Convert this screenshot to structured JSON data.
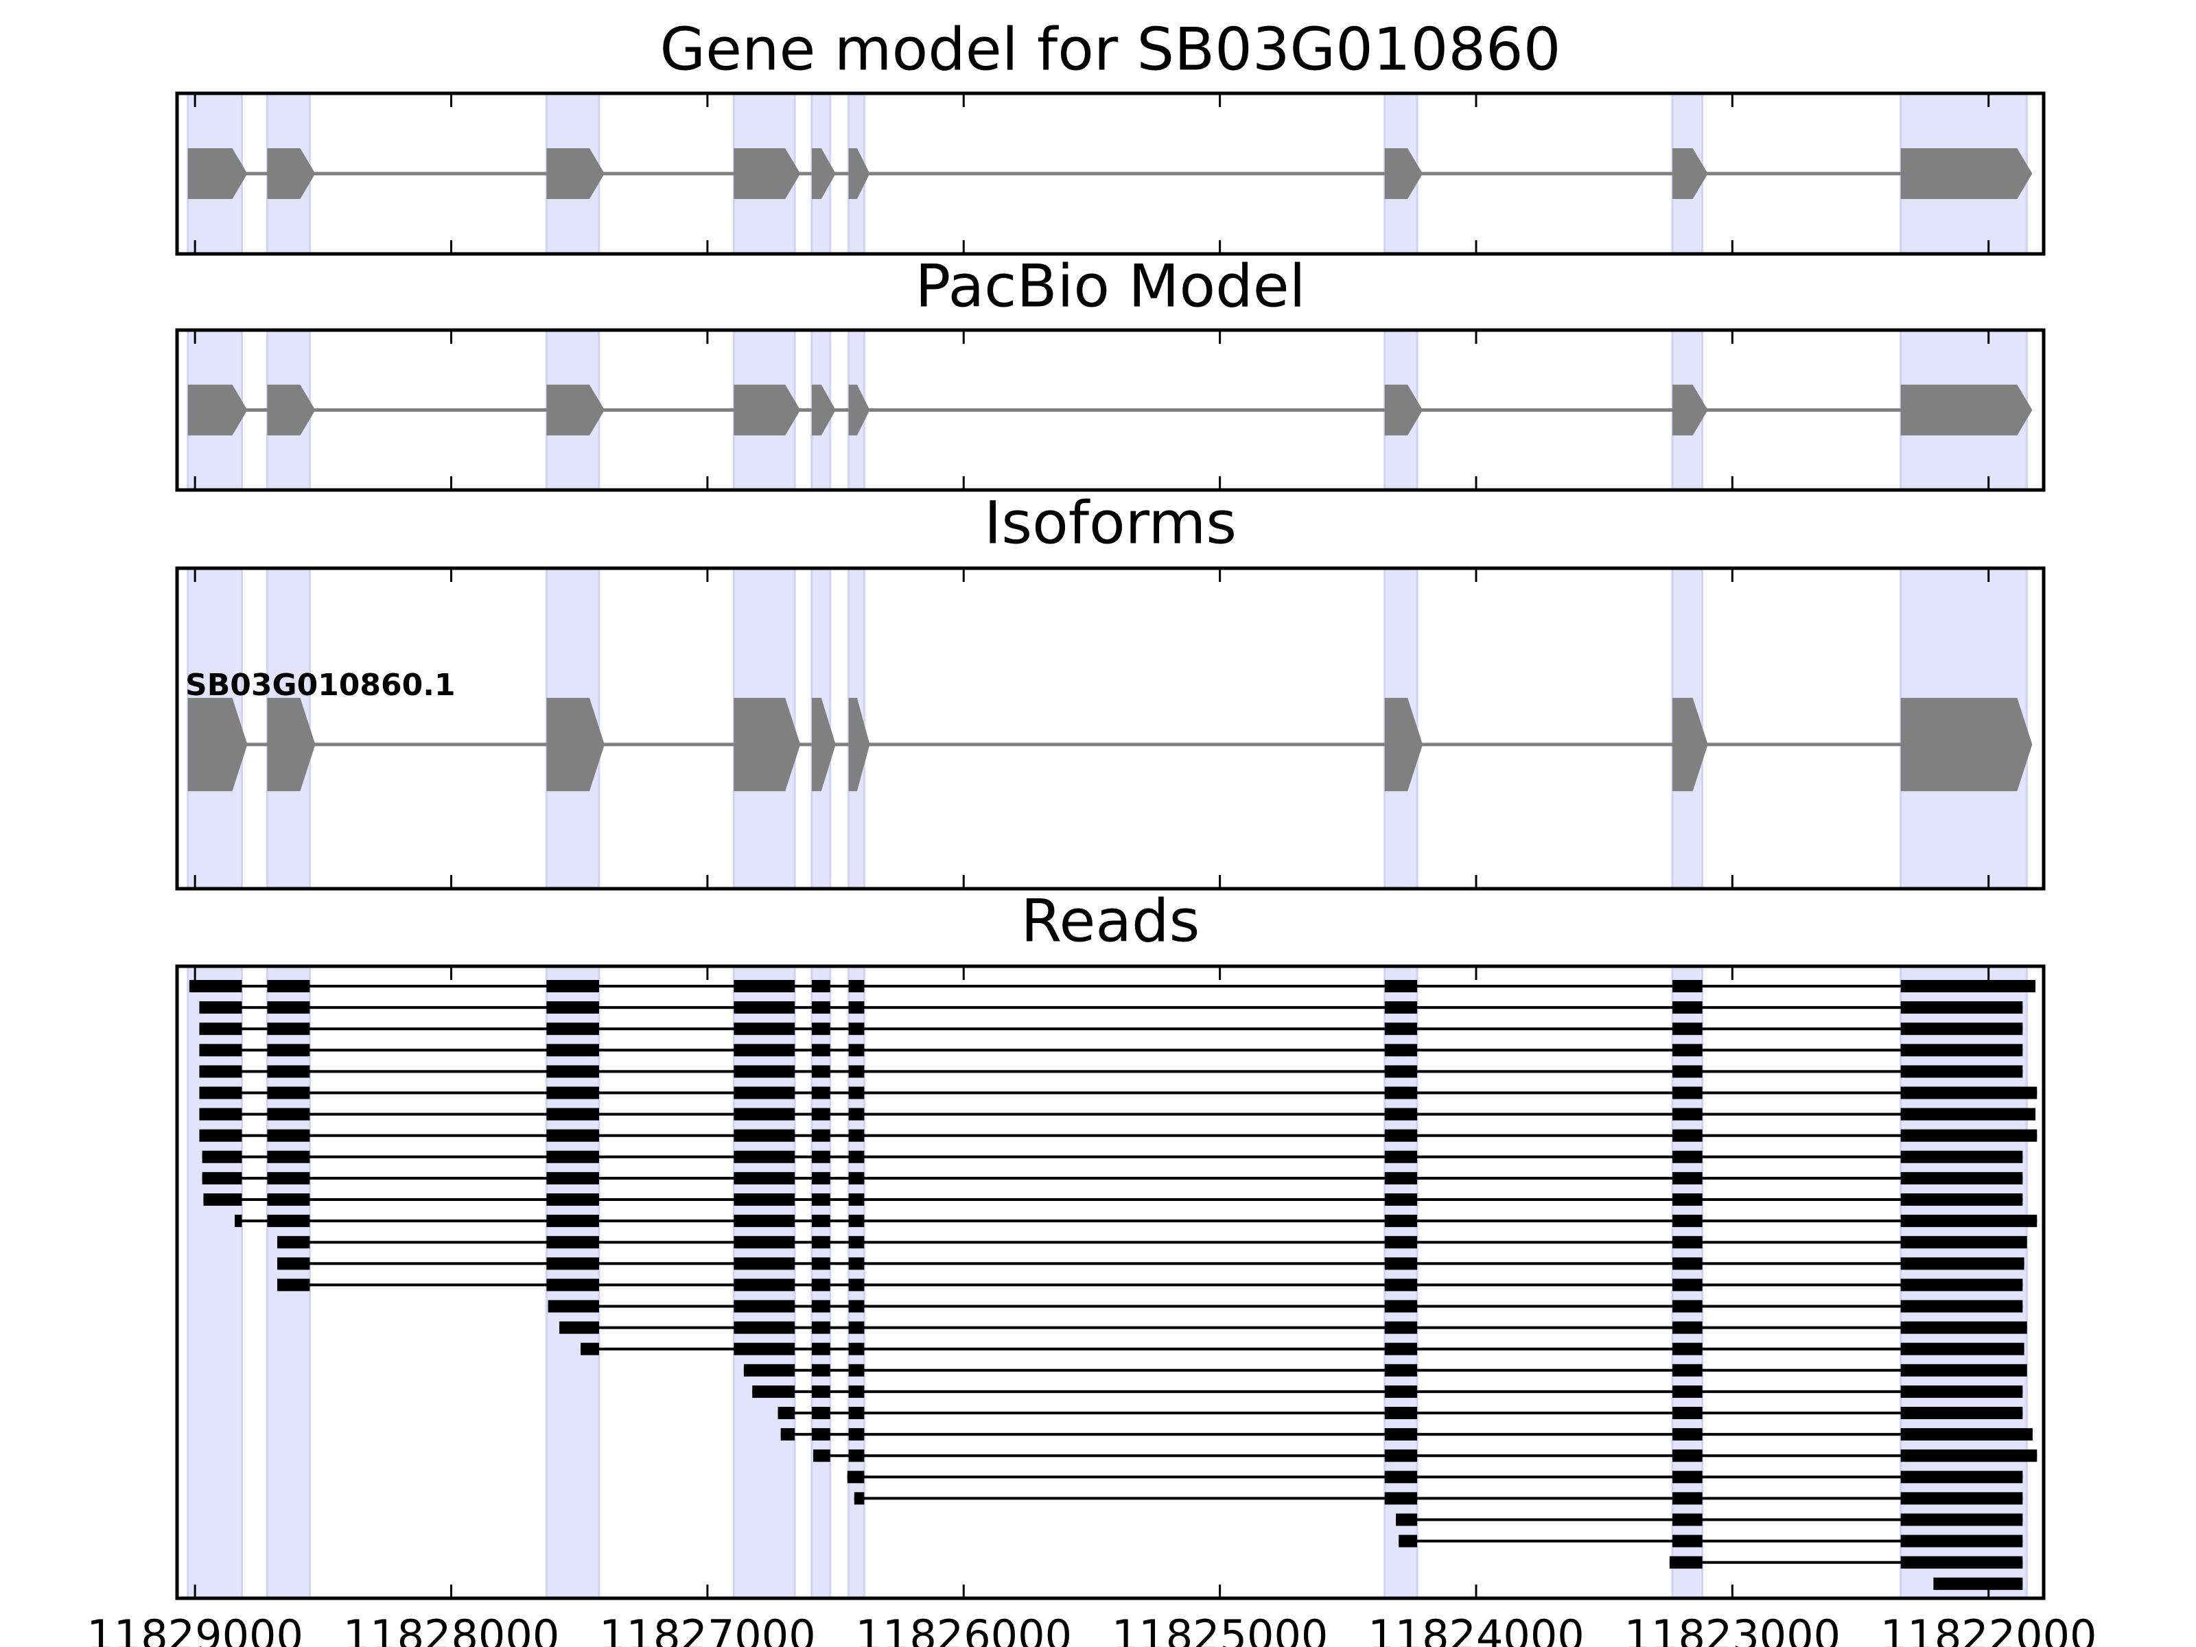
{
  "chart_data": {
    "type": "gene-tracks",
    "panels": [
      {
        "title": "Gene model for SB03G010860",
        "kind": "model"
      },
      {
        "title": "PacBio Model",
        "kind": "model"
      },
      {
        "title": "Isoforms",
        "kind": "isoform",
        "isoforms": [
          "SB03G010860.1"
        ]
      },
      {
        "title": "Reads",
        "kind": "reads"
      }
    ],
    "exons": [
      [
        11829028,
        11828817
      ],
      [
        11828718,
        11828552
      ],
      [
        11827628,
        11827423
      ],
      [
        11826897,
        11826659
      ],
      [
        11826593,
        11826521
      ],
      [
        11826449,
        11826388
      ],
      [
        11824357,
        11824230
      ],
      [
        11823234,
        11823117
      ],
      [
        11822343,
        11821851
      ]
    ],
    "reads": [
      [
        11829022,
        11821817
      ],
      [
        11828983,
        11821867
      ],
      [
        11828983,
        11821867
      ],
      [
        11828983,
        11821867
      ],
      [
        11828983,
        11821867
      ],
      [
        11828983,
        11821811
      ],
      [
        11828983,
        11821817
      ],
      [
        11828983,
        11821811
      ],
      [
        11828972,
        11821867
      ],
      [
        11828972,
        11821867
      ],
      [
        11828967,
        11821867
      ],
      [
        11828845,
        11821811
      ],
      [
        11828679,
        11821850
      ],
      [
        11828679,
        11821861
      ],
      [
        11828679,
        11821867
      ],
      [
        11827622,
        11821867
      ],
      [
        11827578,
        11821850
      ],
      [
        11827495,
        11821861
      ],
      [
        11826858,
        11821850
      ],
      [
        11826825,
        11821867
      ],
      [
        11826725,
        11821867
      ],
      [
        11826714,
        11821828
      ],
      [
        11826587,
        11821811
      ],
      [
        11826454,
        11821867
      ],
      [
        11826427,
        11821867
      ],
      [
        11824313,
        11821867
      ],
      [
        11824302,
        11821867
      ],
      [
        11823245,
        11821867
      ],
      [
        11822215,
        11821867
      ]
    ],
    "xlim": [
      11829070,
      11821785
    ],
    "xticks": [
      11829000,
      11828000,
      11827000,
      11826000,
      11825000,
      11824000,
      11823000,
      11822000
    ],
    "exon_color": "#808080",
    "band_color": "#e3e3fc",
    "read_color": "#000000"
  }
}
